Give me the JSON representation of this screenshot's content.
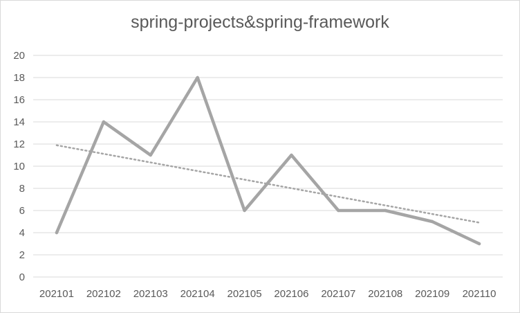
{
  "chart_data": {
    "type": "line",
    "title": "spring-projects&spring-framework",
    "xlabel": "",
    "ylabel": "",
    "categories": [
      "202101",
      "202102",
      "202103",
      "202104",
      "202105",
      "202106",
      "202107",
      "202108",
      "202109",
      "202110"
    ],
    "series": [
      {
        "values": [
          4,
          14,
          11,
          18,
          6,
          11,
          6,
          6,
          5,
          3
        ],
        "color": "#a5a5a5",
        "style": "solid"
      }
    ],
    "trendline": {
      "type": "linear",
      "color": "#a5a5a5",
      "style": "dotted"
    },
    "ylim": [
      0,
      20
    ],
    "yticks": [
      0,
      2,
      4,
      6,
      8,
      10,
      12,
      14,
      16,
      18,
      20
    ],
    "grid": true,
    "legend": "none",
    "colors": {
      "gridline": "#d9d9d9",
      "text": "#595959"
    }
  }
}
